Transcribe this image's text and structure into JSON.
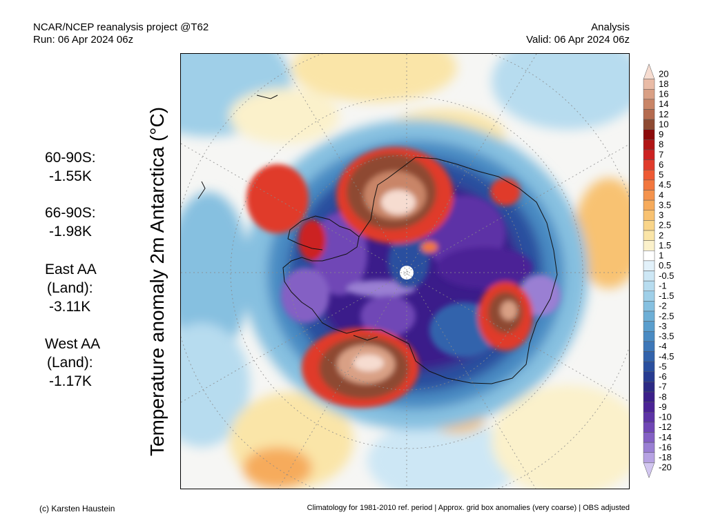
{
  "header": {
    "title": "NCAR/NCEP reanalysis project @T62",
    "run": "Run: 06 Apr 2024 06z",
    "kind": "Analysis",
    "valid": "Valid: 06 Apr 2024 06z"
  },
  "stats": [
    {
      "label": "60-90S:",
      "value": "-1.55K"
    },
    {
      "label": "66-90S:",
      "value": "-1.98K"
    },
    {
      "label": "East AA",
      "sub": "(Land):",
      "value": "-3.11K"
    },
    {
      "label": "West AA",
      "sub": "(Land):",
      "value": "-1.17K"
    }
  ],
  "ylabel": "Temperature anomaly 2m Antarctica (°C)",
  "colorbar": {
    "labels": [
      "20",
      "18",
      "16",
      "14",
      "12",
      "10",
      "9",
      "8",
      "7",
      "6",
      "5",
      "4.5",
      "4",
      "3.5",
      "3",
      "2.5",
      "2",
      "1.5",
      "1",
      "0.5",
      "-0.5",
      "-1",
      "-1.5",
      "-2",
      "-2.5",
      "-3",
      "-3.5",
      "-4",
      "-4.5",
      "-5",
      "-6",
      "-7",
      "-8",
      "-9",
      "-10",
      "-12",
      "-14",
      "-16",
      "-18",
      "-20"
    ],
    "colors": [
      "#f6dcd0",
      "#e9bba6",
      "#d9a085",
      "#c98567",
      "#b46b4f",
      "#8e4a32",
      "#8b0a0a",
      "#b01515",
      "#cc2222",
      "#e03b2b",
      "#ee5a34",
      "#f2773e",
      "#f4934d",
      "#f6ab5c",
      "#f8c272",
      "#f9d58a",
      "#fae5a8",
      "#fbf1cb",
      "#ffffff",
      "#e2f1fa",
      "#cde7f5",
      "#b7dcef",
      "#9fcfe8",
      "#86c0e0",
      "#6eafd6",
      "#5a9ecd",
      "#4a8bc3",
      "#3d77b8",
      "#3263ac",
      "#2a4f9f",
      "#273b91",
      "#2c2a85",
      "#3b1f8a",
      "#4b2396",
      "#5d33a6",
      "#7046b6",
      "#8460c4",
      "#9a7fd3",
      "#b6a2e2",
      "#d2c6f0"
    ]
  },
  "footer": {
    "credit": "(c) Karsten Haustein",
    "note": "Climatology for 1981-2010 ref. period | Approx. grid box anomalies (very coarse) | OBS adjusted"
  }
}
